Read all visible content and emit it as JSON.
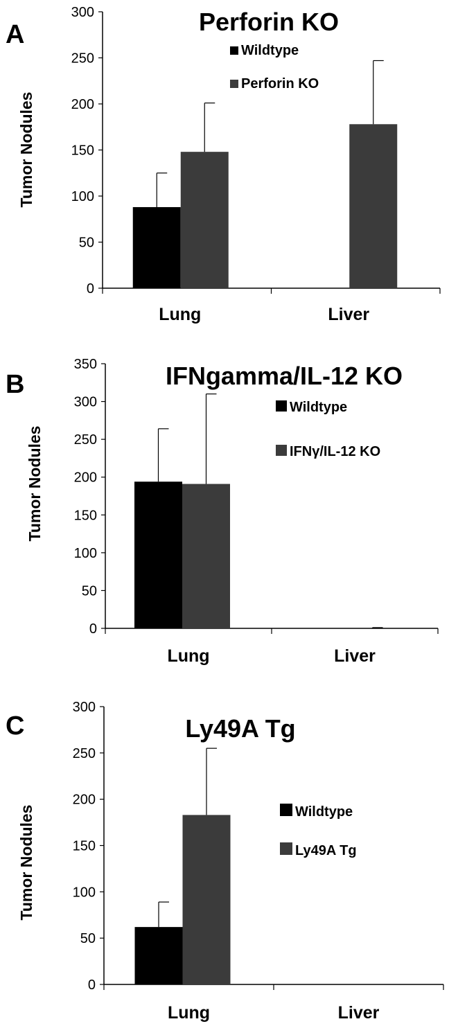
{
  "figure": {
    "colors": {
      "wildtype": "#000000",
      "mutant": "#3b3b3b",
      "axis": "#000000"
    },
    "panels": [
      {
        "letter": "A"
      },
      {
        "letter": "B"
      },
      {
        "letter": "C"
      }
    ]
  },
  "chart_data": [
    {
      "type": "bar",
      "title": "Perforin KO",
      "ylabel": "Tumor Nodules",
      "xlabel": "",
      "categories": [
        "Lung",
        "Liver"
      ],
      "ylim": [
        0,
        300
      ],
      "yticks": [
        "0",
        "50",
        "100",
        "150",
        "200",
        "250",
        "300"
      ],
      "legend_position": "top-right",
      "series": [
        {
          "name": "Wildtype",
          "values": [
            88,
            0
          ],
          "error": [
            37,
            0
          ]
        },
        {
          "name": "Perforin KO",
          "values": [
            148,
            178
          ],
          "error": [
            53,
            69
          ]
        }
      ]
    },
    {
      "type": "bar",
      "title": "IFNgamma/IL-12 KO",
      "ylabel": "Tumor Nodules",
      "xlabel": "",
      "categories": [
        "Lung",
        "Liver"
      ],
      "ylim": [
        0,
        350
      ],
      "yticks": [
        "0",
        "50",
        "100",
        "150",
        "200",
        "250",
        "300",
        "350"
      ],
      "legend_position": "top-right",
      "series": [
        {
          "name": "Wildtype",
          "values": [
            194,
            0
          ],
          "error": [
            70,
            0
          ]
        },
        {
          "name": "IFNγ/IL-12 KO",
          "values": [
            191,
            0
          ],
          "error": [
            119,
            1
          ]
        }
      ]
    },
    {
      "type": "bar",
      "title": "Ly49A Tg",
      "ylabel": "Tumor Nodules",
      "xlabel": "",
      "categories": [
        "Lung",
        "Liver"
      ],
      "ylim": [
        0,
        300
      ],
      "yticks": [
        "0",
        "50",
        "100",
        "150",
        "200",
        "250",
        "300"
      ],
      "legend_position": "right",
      "series": [
        {
          "name": "Wildtype",
          "values": [
            62,
            0
          ],
          "error": [
            27,
            0
          ]
        },
        {
          "name": "Ly49A Tg",
          "values": [
            183,
            0
          ],
          "error": [
            72,
            0
          ]
        }
      ]
    }
  ]
}
